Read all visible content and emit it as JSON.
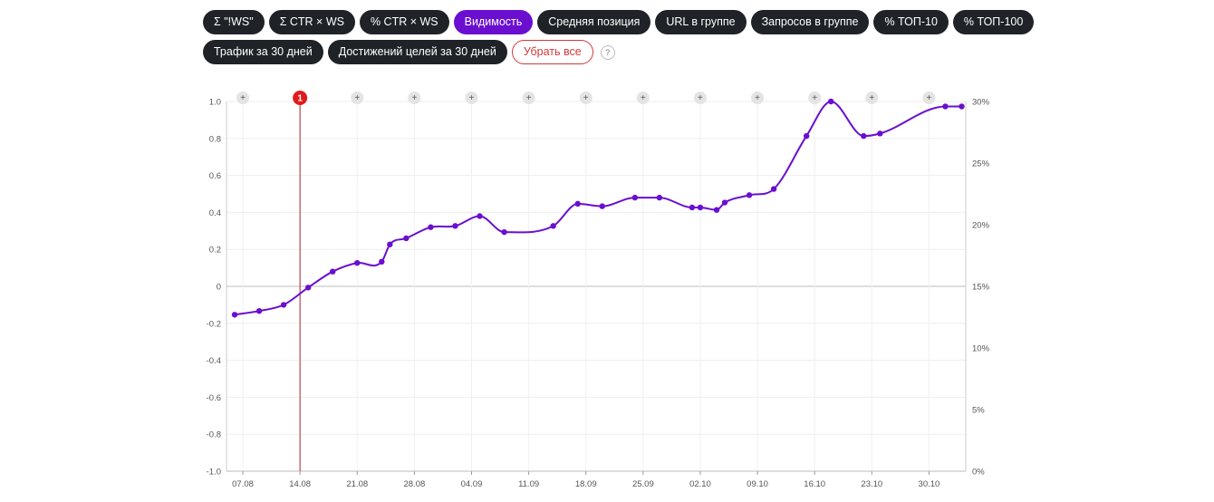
{
  "filters": {
    "row1": [
      {
        "label": "Σ \"!WS\"",
        "active": false
      },
      {
        "label": "Σ CTR × WS",
        "active": false
      },
      {
        "label": "% CTR × WS",
        "active": false
      },
      {
        "label": "Видимость",
        "active": true
      },
      {
        "label": "Средняя позиция",
        "active": false
      },
      {
        "label": "URL в группе",
        "active": false
      },
      {
        "label": "Запросов в группе",
        "active": false
      },
      {
        "label": "% ТОП-10",
        "active": false
      },
      {
        "label": "% ТОП-100",
        "active": false
      }
    ],
    "row2": [
      {
        "label": "Трафик за 30 дней",
        "active": false
      },
      {
        "label": "Достижений целей за 30 дней",
        "active": false
      }
    ],
    "clear_label": "Убрать все",
    "help_label": "?"
  },
  "chart_data": {
    "type": "line",
    "title": "",
    "xlabel": "",
    "ylabel": "",
    "x_ticks": [
      "07.08",
      "14.08",
      "21.08",
      "28.08",
      "04.09",
      "11.09",
      "18.09",
      "25.09",
      "02.10",
      "09.10",
      "16.10",
      "23.10",
      "30.10"
    ],
    "y_left_ticks": [
      "1.0",
      "0.8",
      "0.6",
      "0.4",
      "0.2",
      "0",
      "-0.2",
      "-0.4",
      "-0.6",
      "-0.8",
      "-1.0"
    ],
    "y_left_range": [
      -1.0,
      1.0
    ],
    "y_right_ticks": [
      "30%",
      "25%",
      "20%",
      "15%",
      "10%",
      "5%",
      "0%"
    ],
    "y_right_range": [
      0,
      30
    ],
    "grid": true,
    "color": "#6a0fd0",
    "series": [
      {
        "values": [
          {
            "x": "2024-08-06",
            "y": 12.7
          },
          {
            "x": "2024-08-09",
            "y": 13.0
          },
          {
            "x": "2024-08-12",
            "y": 13.5
          },
          {
            "x": "2024-08-15",
            "y": 14.9
          },
          {
            "x": "2024-08-18",
            "y": 16.2
          },
          {
            "x": "2024-08-21",
            "y": 16.9
          },
          {
            "x": "2024-08-24",
            "y": 17.0
          },
          {
            "x": "2024-08-25",
            "y": 18.4
          },
          {
            "x": "2024-08-27",
            "y": 18.9
          },
          {
            "x": "2024-08-30",
            "y": 19.8
          },
          {
            "x": "2024-09-02",
            "y": 19.9
          },
          {
            "x": "2024-09-05",
            "y": 20.7
          },
          {
            "x": "2024-09-08",
            "y": 19.4
          },
          {
            "x": "2024-09-14",
            "y": 19.9
          },
          {
            "x": "2024-09-17",
            "y": 21.7
          },
          {
            "x": "2024-09-20",
            "y": 21.5
          },
          {
            "x": "2024-09-24",
            "y": 22.2
          },
          {
            "x": "2024-09-27",
            "y": 22.2
          },
          {
            "x": "2024-10-01",
            "y": 21.4
          },
          {
            "x": "2024-10-02",
            "y": 21.4
          },
          {
            "x": "2024-10-04",
            "y": 21.2
          },
          {
            "x": "2024-10-05",
            "y": 21.8
          },
          {
            "x": "2024-10-08",
            "y": 22.4
          },
          {
            "x": "2024-10-11",
            "y": 22.9
          },
          {
            "x": "2024-10-15",
            "y": 27.2
          },
          {
            "x": "2024-10-18",
            "y": 30.0
          },
          {
            "x": "2024-10-22",
            "y": 27.2
          },
          {
            "x": "2024-10-24",
            "y": 27.4
          },
          {
            "x": "2024-11-01",
            "y": 29.6
          },
          {
            "x": "2024-11-03",
            "y": 29.6
          }
        ]
      }
    ],
    "annotation_markers": [
      {
        "x": "2024-08-07",
        "label": "+",
        "highlight": false
      },
      {
        "x": "2024-08-14",
        "label": "1",
        "highlight": true
      },
      {
        "x": "2024-08-21",
        "label": "+",
        "highlight": false
      },
      {
        "x": "2024-08-28",
        "label": "+",
        "highlight": false
      },
      {
        "x": "2024-09-04",
        "label": "+",
        "highlight": false
      },
      {
        "x": "2024-09-11",
        "label": "+",
        "highlight": false
      },
      {
        "x": "2024-09-18",
        "label": "+",
        "highlight": false
      },
      {
        "x": "2024-09-25",
        "label": "+",
        "highlight": false
      },
      {
        "x": "2024-10-02",
        "label": "+",
        "highlight": false
      },
      {
        "x": "2024-10-09",
        "label": "+",
        "highlight": false
      },
      {
        "x": "2024-10-16",
        "label": "+",
        "highlight": false
      },
      {
        "x": "2024-10-23",
        "label": "+",
        "highlight": false
      },
      {
        "x": "2024-10-30",
        "label": "+",
        "highlight": false
      }
    ]
  }
}
